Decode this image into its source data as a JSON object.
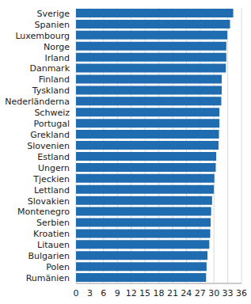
{
  "chart_data": {
    "type": "bar",
    "orientation": "horizontal",
    "categories": [
      "Sverige",
      "Spanien",
      "Luxembourg",
      "Norge",
      "Irland",
      "Danmark",
      "Finland",
      "Tyskland",
      "Nederländerna",
      "Schweiz",
      "Portugal",
      "Grekland",
      "Slovenien",
      "Estland",
      "Ungern",
      "Tjeckien",
      "Lettland",
      "Slovakien",
      "Montenegro",
      "Serbien",
      "Kroatien",
      "Litauen",
      "Bulgarien",
      "Polen",
      "Rumänien"
    ],
    "values": [
      34.2,
      33.5,
      32.9,
      32.7,
      32.7,
      32.6,
      31.7,
      31.7,
      31.6,
      31.2,
      31.2,
      31.1,
      31.0,
      30.5,
      30.4,
      30.1,
      30.0,
      29.6,
      29.4,
      29.3,
      29.2,
      29.0,
      28.6,
      28.4,
      28.3
    ],
    "color": "#1f6db0",
    "xlim": [
      0,
      36
    ],
    "xticks": [
      0,
      3,
      6,
      9,
      12,
      15,
      18,
      21,
      24,
      27,
      30,
      33,
      36
    ],
    "grid": true
  }
}
